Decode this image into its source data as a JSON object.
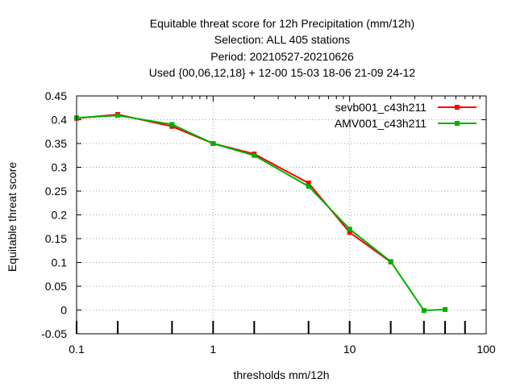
{
  "chart_data": {
    "type": "line",
    "title_lines": [
      "Equitable threat score  for 12h Precipitation (mm/12h)",
      "Selection: ALL    405 stations",
      "Period: 20210527-20210626",
      "Used {00,06,12,18} + 12-00 15-03 18-06 21-09 24-12"
    ],
    "xlabel": "thresholds mm/12h",
    "ylabel": "Equitable threat score",
    "xscale": "log",
    "xlim": [
      0.1,
      100
    ],
    "ylim": [
      -0.05,
      0.45
    ],
    "grid": true,
    "legend_position": "top-right",
    "x_tick_labels": [
      "0.1",
      "1",
      "10",
      "100"
    ],
    "y_tick_labels": [
      "-0.05",
      "0",
      "0.05",
      "0.1",
      "0.15",
      "0.2",
      "0.25",
      "0.3",
      "0.35",
      "0.4",
      "0.45"
    ],
    "bottom_tick_marks_x": [
      0.1,
      0.2,
      0.5,
      1,
      2,
      5,
      10,
      20,
      35,
      50,
      70
    ],
    "series": [
      {
        "name": "sevb001_c43h211",
        "color": "#ff0000",
        "x": [
          0.1,
          0.2,
          0.5,
          1,
          2,
          5,
          10,
          20
        ],
        "y": [
          0.403,
          0.411,
          0.386,
          0.35,
          0.328,
          0.267,
          0.163,
          0.101
        ]
      },
      {
        "name": "AMV001_c43h211",
        "color": "#00b000",
        "x": [
          0.1,
          0.2,
          0.5,
          1,
          2,
          5,
          10,
          20,
          35,
          50
        ],
        "y": [
          0.404,
          0.409,
          0.39,
          0.35,
          0.325,
          0.26,
          0.17,
          0.102,
          -0.001,
          0.001
        ]
      }
    ]
  }
}
